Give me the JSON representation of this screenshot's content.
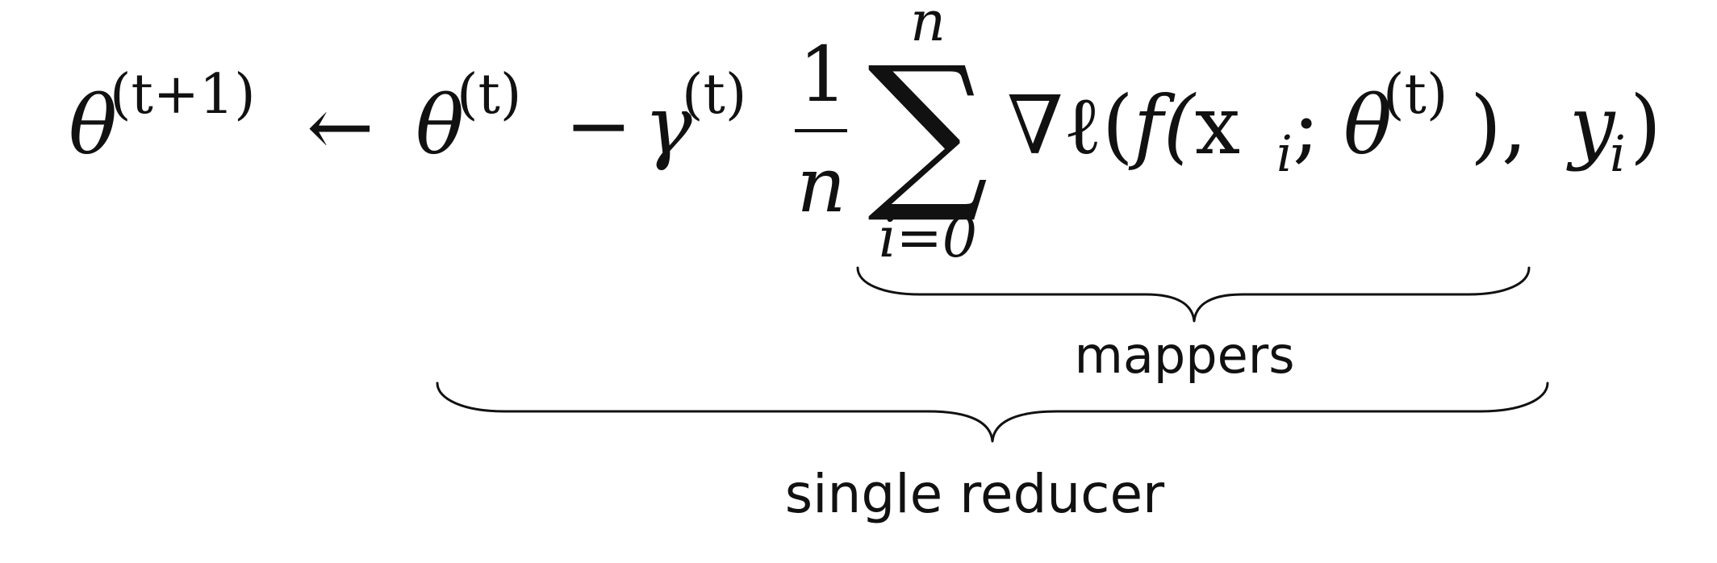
{
  "equation": {
    "theta": "θ",
    "sup_t_plus_1": "(t+1)",
    "arrow": "←",
    "sup_t": "(t)",
    "minus": "−",
    "gamma": "γ",
    "frac_num": "1",
    "frac_den": "n",
    "sigma": "∑",
    "sum_upper": "n",
    "sum_lower": "i=0",
    "nabla_ell": "∇ℓ(",
    "f_open": "f(",
    "x": "x",
    "sub_i": "i",
    "semicolon": ";",
    "close_comma": "), ",
    "y": "y",
    "close": ")"
  },
  "labels": {
    "mappers": "mappers",
    "single_reducer": "single reducer"
  }
}
